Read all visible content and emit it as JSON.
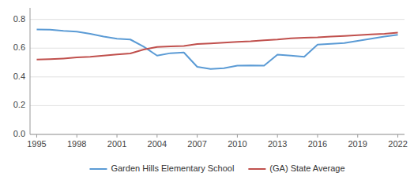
{
  "chart_data": {
    "type": "line",
    "x": [
      1995,
      1996,
      1997,
      1998,
      1999,
      2000,
      2001,
      2002,
      2003,
      2004,
      2005,
      2006,
      2007,
      2008,
      2009,
      2010,
      2011,
      2012,
      2013,
      2014,
      2015,
      2016,
      2017,
      2018,
      2019,
      2020,
      2021,
      2022
    ],
    "series": [
      {
        "name": "Garden Hills Elementary School",
        "color": "#5b9bd5",
        "values": [
          0.73,
          0.728,
          0.72,
          0.715,
          0.7,
          0.68,
          0.665,
          0.66,
          0.61,
          0.548,
          0.565,
          0.57,
          0.47,
          0.455,
          0.46,
          0.478,
          0.48,
          0.478,
          0.555,
          0.548,
          0.54,
          0.625,
          0.63,
          0.635,
          0.65,
          0.665,
          0.68,
          0.693
        ]
      },
      {
        "name": "(GA) State Average",
        "color": "#c0504d",
        "values": [
          0.52,
          0.523,
          0.528,
          0.535,
          0.54,
          0.548,
          0.556,
          0.563,
          0.59,
          0.608,
          0.612,
          0.615,
          0.628,
          0.633,
          0.638,
          0.643,
          0.648,
          0.655,
          0.66,
          0.668,
          0.672,
          0.675,
          0.68,
          0.685,
          0.69,
          0.695,
          0.7,
          0.708
        ]
      }
    ],
    "xlim": [
      1994.5,
      2022.5
    ],
    "ylim": [
      0,
      0.88
    ],
    "xticks": [
      1995,
      1998,
      2001,
      2004,
      2007,
      2010,
      2013,
      2016,
      2019,
      2022
    ],
    "yticks": [
      {
        "value": 0,
        "label": "0.0"
      },
      0.2,
      0.4,
      0.6,
      0.8
    ],
    "grid": true,
    "legend": "bottom"
  }
}
